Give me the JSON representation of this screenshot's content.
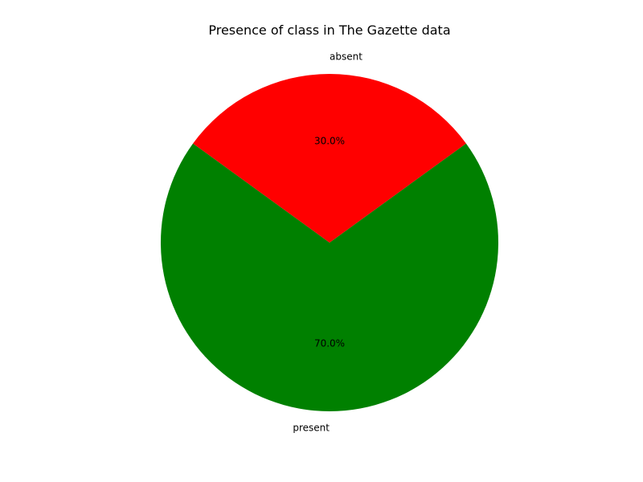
{
  "chart_data": {
    "type": "pie",
    "title": "Presence of class in The Gazette data",
    "categories": [
      "present",
      "absent"
    ],
    "values": [
      70.0,
      30.0
    ],
    "percent_labels": [
      "70.0%",
      "30.0%"
    ],
    "colors": [
      "#008000",
      "#ff0000"
    ],
    "start_angle_deg": 144,
    "counterclockwise": true,
    "legend": "none"
  }
}
